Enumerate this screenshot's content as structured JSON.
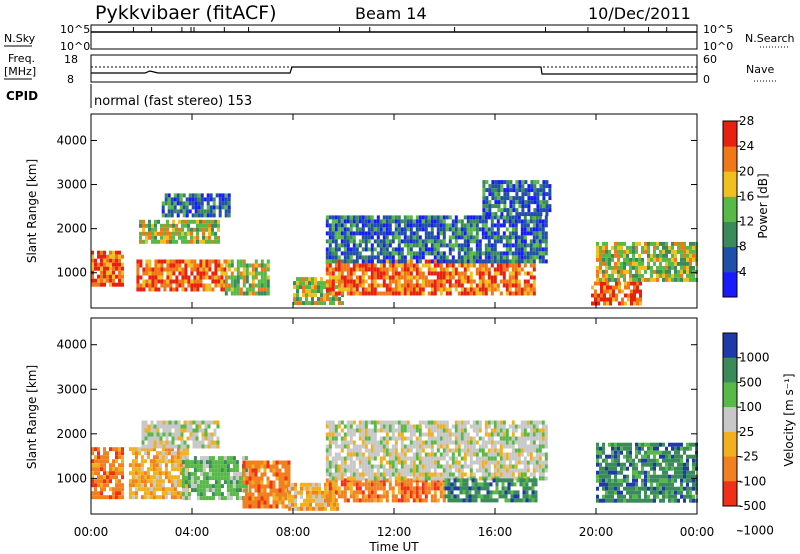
{
  "header": {
    "title": "Pykkvibaer (fitACF)",
    "beam": "Beam 14",
    "date": "10/Dec/2011"
  },
  "strip_sky": {
    "left_label": "N.Sky",
    "left_ticks": [
      "10^5",
      "10^0"
    ],
    "right_ticks": [
      "10^5",
      "10^0"
    ],
    "right_label": "N.Search"
  },
  "strip_freq": {
    "left_label_1": "Freq.",
    "left_label_2": "[MHz]",
    "left_ticks": [
      "18",
      "8"
    ],
    "right_ticks": [
      "60",
      "0"
    ],
    "right_label": "Nave"
  },
  "cpid": {
    "label": "CPID",
    "value": "normal (fast stereo) 153"
  },
  "chart_data": [
    {
      "type": "heatmap",
      "panel": "power",
      "ylabel": "Slant Range [km]",
      "yticks": [
        "1000",
        "2000",
        "3000",
        "4000"
      ],
      "ylim": [
        200,
        4600
      ],
      "xlim": [
        0,
        24
      ],
      "colorbar_label": "Power [dB]",
      "colorbar_ticks": [
        "4",
        "8",
        "12",
        "16",
        "20",
        "24",
        "28"
      ],
      "colorbar_colors": [
        "#1a1aff",
        "#1f4fa8",
        "#3a8a5a",
        "#58b848",
        "#f0c020",
        "#f07818",
        "#e82010"
      ],
      "regions": [
        {
          "t0": 0.0,
          "t1": 1.3,
          "r0": 700,
          "r1": 1500,
          "level": "high"
        },
        {
          "t0": 1.8,
          "t1": 5.3,
          "r0": 600,
          "r1": 1300,
          "level": "high"
        },
        {
          "t0": 1.9,
          "t1": 5.0,
          "r0": 1700,
          "r1": 2200,
          "level": "mid"
        },
        {
          "t0": 2.8,
          "t1": 5.5,
          "r0": 2300,
          "r1": 2800,
          "level": "low"
        },
        {
          "t0": 5.3,
          "t1": 7.0,
          "r0": 500,
          "r1": 1300,
          "level": "mid"
        },
        {
          "t0": 8.0,
          "t1": 10.0,
          "r0": 300,
          "r1": 900,
          "level": "mid"
        },
        {
          "t0": 9.3,
          "t1": 17.6,
          "r0": 500,
          "r1": 1300,
          "level": "high"
        },
        {
          "t0": 9.3,
          "t1": 18.0,
          "r0": 1300,
          "r1": 2300,
          "level": "low"
        },
        {
          "t0": 15.5,
          "t1": 18.2,
          "r0": 2300,
          "r1": 3100,
          "level": "low"
        },
        {
          "t0": 19.8,
          "t1": 21.8,
          "r0": 300,
          "r1": 800,
          "level": "high"
        },
        {
          "t0": 20.0,
          "t1": 24.0,
          "r0": 800,
          "r1": 1700,
          "level": "mid"
        }
      ]
    },
    {
      "type": "heatmap",
      "panel": "velocity",
      "ylabel": "Slant Range [km]",
      "yticks": [
        "1000",
        "2000",
        "3000",
        "4000"
      ],
      "ylim": [
        200,
        4600
      ],
      "xlim": [
        0,
        24
      ],
      "xlabel": "Time UT",
      "xticks": [
        "00:00",
        "04:00",
        "08:00",
        "12:00",
        "16:00",
        "20:00",
        "00:00"
      ],
      "colorbar_label": "Velocity [m s⁻¹]",
      "colorbar_ticks": [
        "1000",
        "500",
        "100",
        "25",
        "-25",
        "-100",
        "-500",
        "-1000"
      ],
      "colorbar_colors": [
        "#1f3aa8",
        "#3a8a5a",
        "#58b848",
        "#c8c8c8",
        "#f0b020",
        "#f08020",
        "#f03018"
      ],
      "regions": [
        {
          "t0": 0.0,
          "t1": 1.3,
          "r0": 600,
          "r1": 1700,
          "class": "-100"
        },
        {
          "t0": 1.5,
          "t1": 3.8,
          "r0": 600,
          "r1": 1700,
          "class": "-25"
        },
        {
          "t0": 3.6,
          "t1": 6.2,
          "r0": 600,
          "r1": 1500,
          "class": "100"
        },
        {
          "t0": 2.0,
          "t1": 5.0,
          "r0": 1700,
          "r1": 2300,
          "class": "25"
        },
        {
          "t0": 6.0,
          "t1": 7.8,
          "r0": 400,
          "r1": 1400,
          "class": "-100"
        },
        {
          "t0": 7.8,
          "t1": 9.8,
          "r0": 300,
          "r1": 900,
          "class": "-25"
        },
        {
          "t0": 9.3,
          "t1": 14.0,
          "r0": 500,
          "r1": 1000,
          "class": "-100"
        },
        {
          "t0": 9.3,
          "t1": 18.0,
          "r0": 1000,
          "r1": 2300,
          "class": "25"
        },
        {
          "t0": 14.0,
          "t1": 17.6,
          "r0": 500,
          "r1": 1000,
          "class": "500"
        },
        {
          "t0": 20.0,
          "t1": 24.0,
          "r0": 500,
          "r1": 1800,
          "class": "500"
        }
      ]
    }
  ]
}
